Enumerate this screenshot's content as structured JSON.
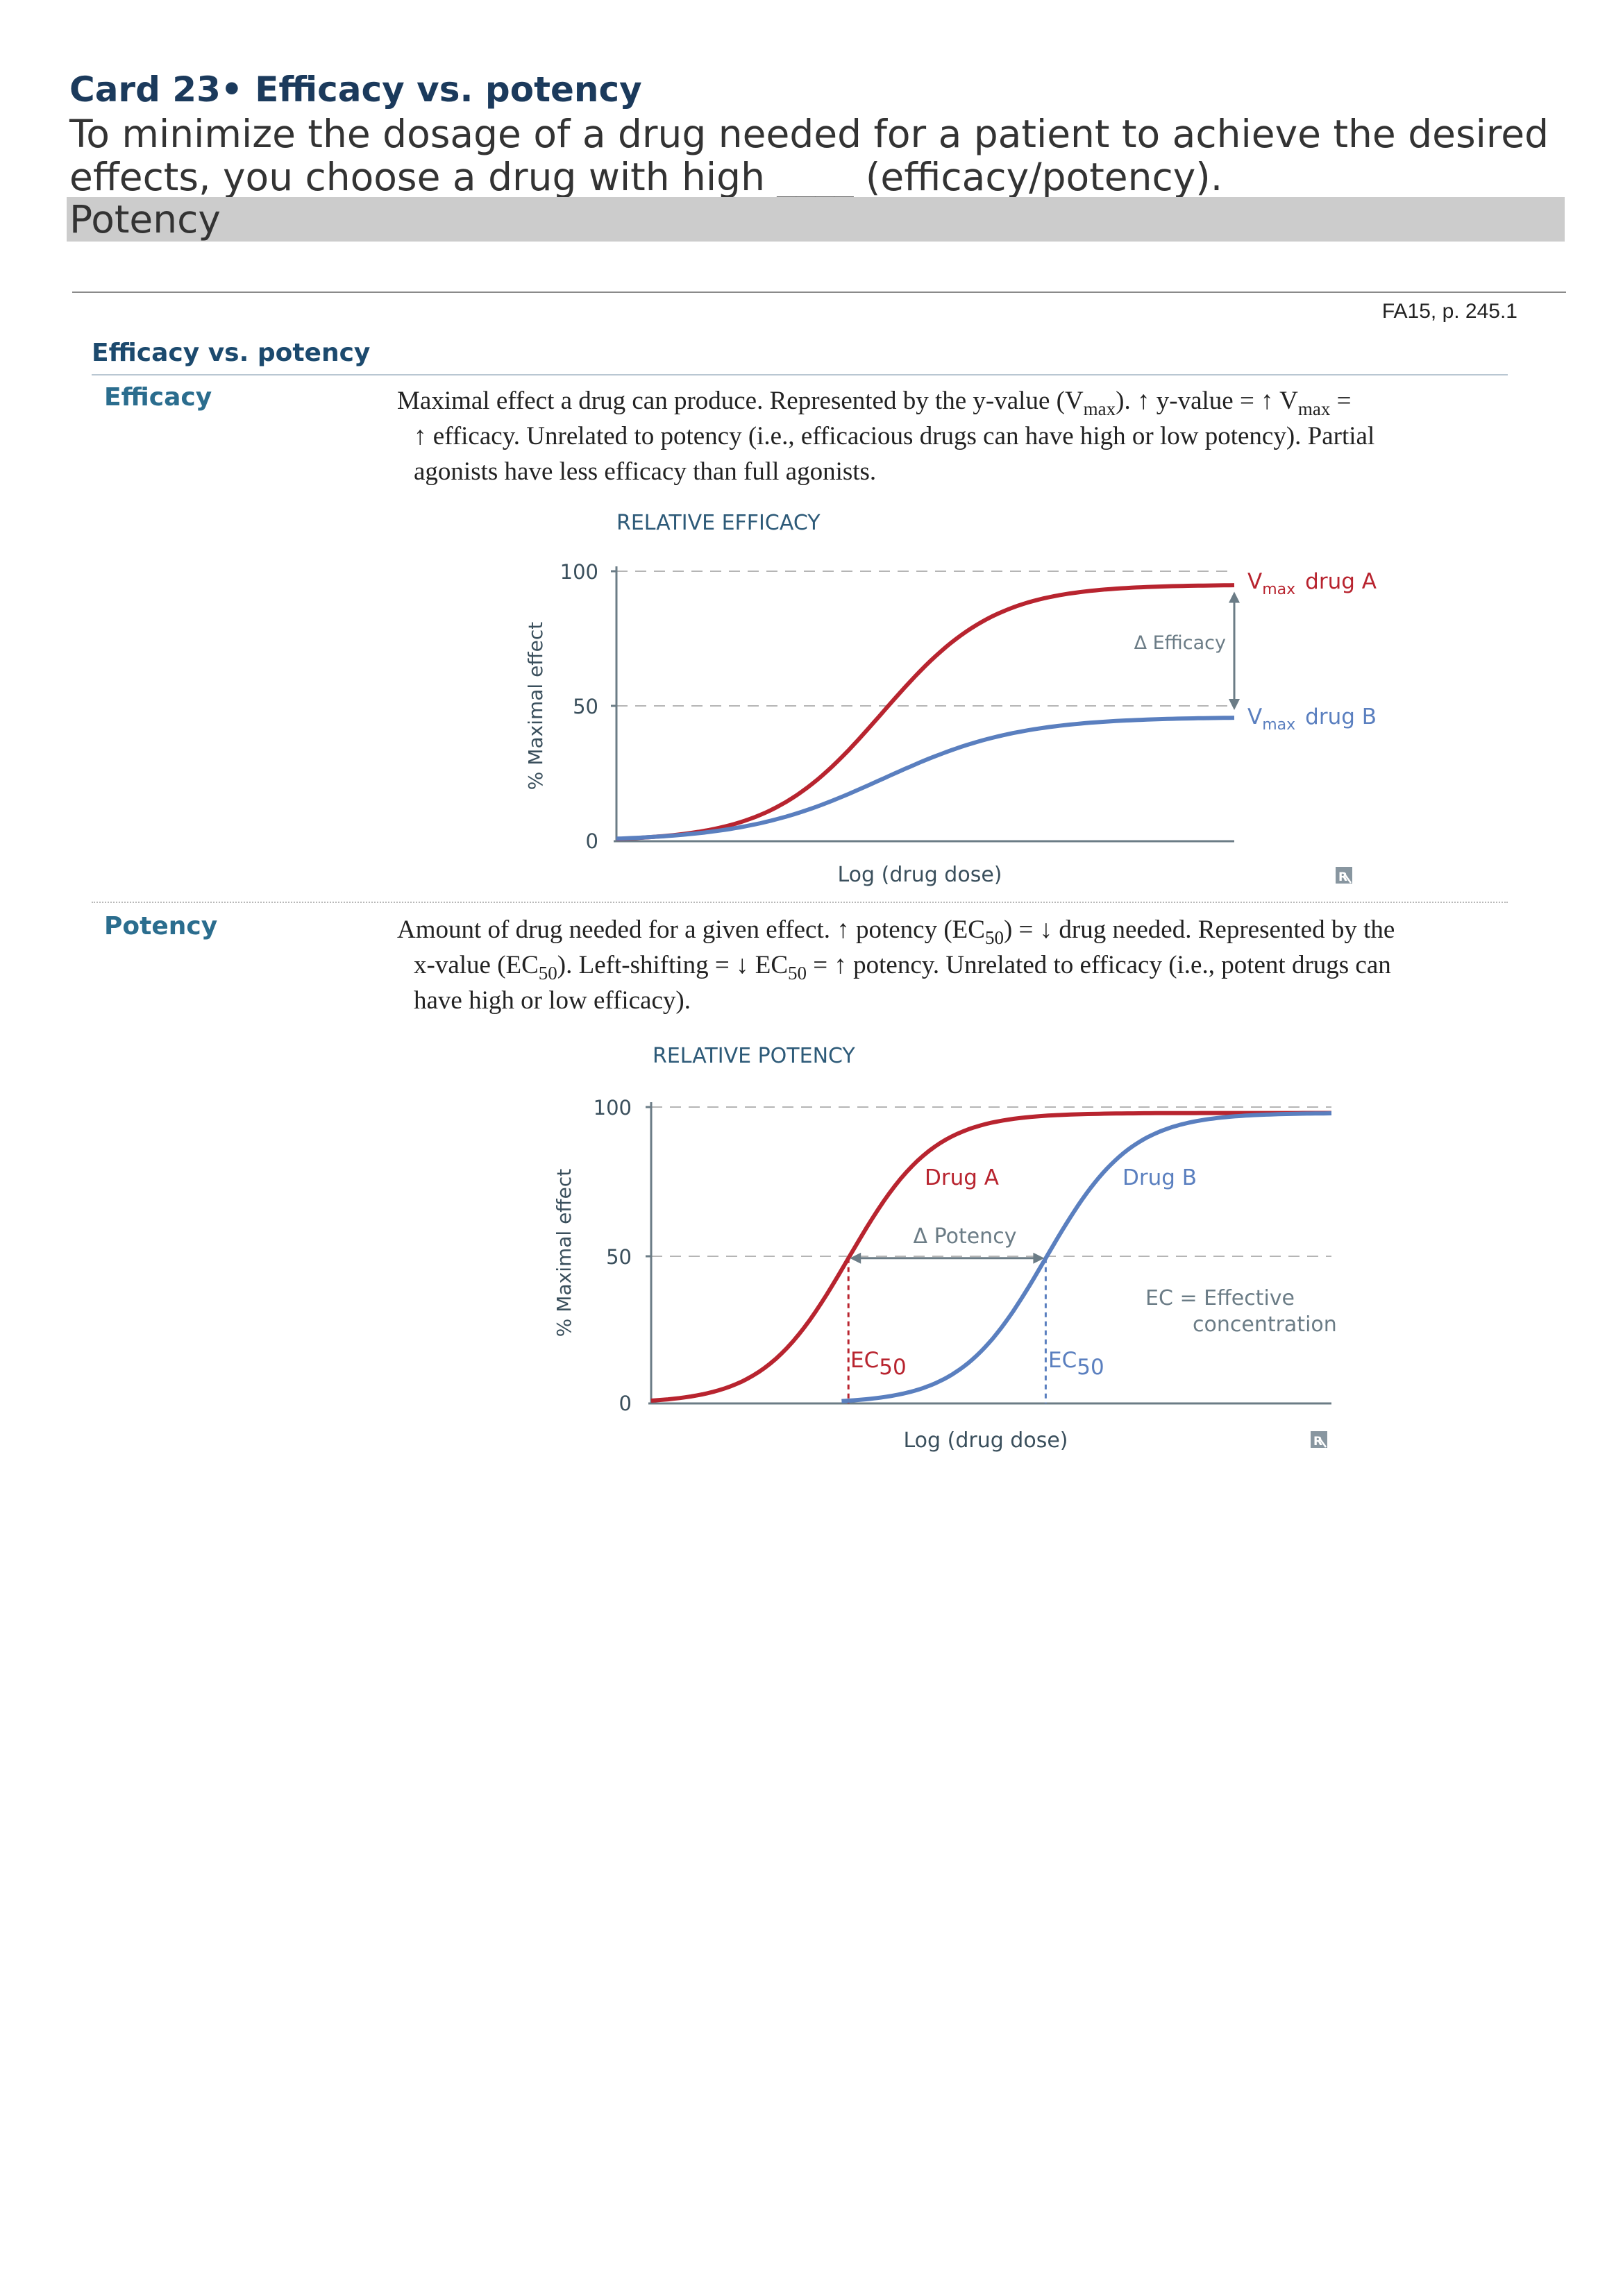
{
  "card": {
    "title": "Card 23• Efficacy vs. potency",
    "question": "To minimize the dosage of a drug needed for a patient to achieve the desired effects, you choose a drug with high ____ (efficacy/potency).",
    "answer": "Potency"
  },
  "reference": "FA15, p. 245.1",
  "section": {
    "heading": "Efficacy vs. potency",
    "efficacy": {
      "term": "Efficacy",
      "l1_a": "Maximal effect a drug can produce. Represented by the y-value (V",
      "l1_sub1": "max",
      "l1_b": "). ↑ y-value = ↑ V",
      "l1_sub2": "max",
      "l1_c": " =",
      "l2": "↑ efficacy. Unrelated to potency (i.e., efficacious drugs can have high or low potency). Partial",
      "l3": "agonists have less efficacy than full agonists."
    },
    "potency": {
      "term": "Potency",
      "l1_a": "Amount of drug needed for a given effect. ↑ potency (EC",
      "l1_sub1": "50",
      "l1_b": ") = ↓ drug needed. Represented by the",
      "l2_a": "x-value (EC",
      "l2_sub1": "50",
      "l2_b": "). Left-shifting = ↓ EC",
      "l2_sub2": "50",
      "l2_c": " = ↑ potency. Unrelated to efficacy (i.e., potent drugs can",
      "l3": "have high or low efficacy)."
    }
  },
  "chart_data": [
    {
      "type": "line",
      "title": "RELATIVE EFFICACY",
      "xlabel": "Log (drug dose)",
      "ylabel": "% Maximal effect",
      "ylim": [
        0,
        100
      ],
      "yticks": [
        "0",
        "50",
        "100"
      ],
      "grid": "dashed at 50 and 100",
      "series": [
        {
          "name": "Drug A",
          "color": "#b8242f",
          "vmax": 95,
          "midpoint_x": 0.43
        },
        {
          "name": "Drug B",
          "color": "#5a7fbf",
          "vmax": 46,
          "midpoint_x": 0.43
        }
      ],
      "labels": {
        "vmax_prefix": "V",
        "vmax_sub": "max",
        "drug_a": "drug A",
        "drug_b": "drug B",
        "delta": "Δ Efficacy"
      },
      "icon": "rx-icon"
    },
    {
      "type": "line",
      "title": "RELATIVE POTENCY",
      "xlabel": "Log (drug dose)",
      "ylabel": "% Maximal effect",
      "ylim": [
        0,
        100
      ],
      "yticks": [
        "0",
        "50",
        "100"
      ],
      "grid": "dashed at 50 and 100",
      "series": [
        {
          "name": "Drug A",
          "color": "#b8242f",
          "vmax": 98,
          "ec50_x": 0.29
        },
        {
          "name": "Drug B",
          "color": "#5a7fbf",
          "vmax": 98,
          "ec50_x": 0.58
        }
      ],
      "labels": {
        "drug_a": "Drug A",
        "drug_b": "Drug B",
        "delta": "Δ Potency",
        "ec_prefix": "EC",
        "ec_sub": "50",
        "ec_note_1": "EC = Effective",
        "ec_note_2": "concentration"
      },
      "icon": "rx-icon"
    }
  ]
}
